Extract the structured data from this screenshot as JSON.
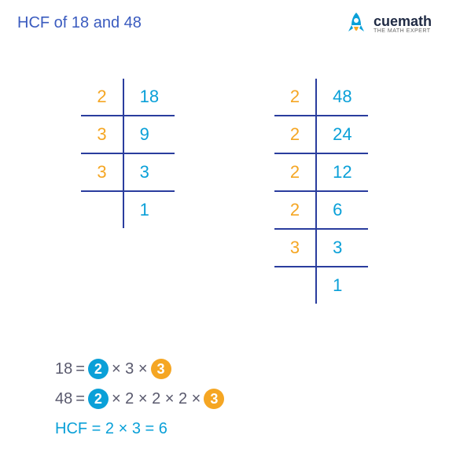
{
  "title": {
    "text": "HCF of 18 and 48",
    "color": "#3a5bbf"
  },
  "brand": {
    "name": "cuemath",
    "tagline": "THE MATH EXPERT",
    "color": "#1f2a44",
    "rocket_body": "#0aa0d8",
    "rocket_flame": "#f5a623"
  },
  "colors": {
    "factor": "#f5a623",
    "value": "#0aa0d8",
    "grid": "#2a3d9e",
    "eq_text": "#5a5a6e",
    "eq_result": "#0aa0d8",
    "chip_blue_bg": "#0aa0d8",
    "chip_orange_bg": "#f5a623"
  },
  "table_left": {
    "rows": [
      {
        "factor": "2",
        "value": "18"
      },
      {
        "factor": "3",
        "value": "9"
      },
      {
        "factor": "3",
        "value": "3"
      },
      {
        "factor": "",
        "value": "1"
      }
    ]
  },
  "table_right": {
    "rows": [
      {
        "factor": "2",
        "value": "48"
      },
      {
        "factor": "2",
        "value": "24"
      },
      {
        "factor": "2",
        "value": "12"
      },
      {
        "factor": "2",
        "value": "6"
      },
      {
        "factor": "3",
        "value": "3"
      },
      {
        "factor": "",
        "value": "1"
      }
    ]
  },
  "equations": {
    "line1": {
      "lhs": "18",
      "eq": "=",
      "t1": "2",
      "s1": "×  3  ×",
      "t2": "3"
    },
    "line2": {
      "lhs": "48",
      "eq": "=",
      "t1": "2",
      "s1": "×  2  ×  2  ×  2  ×",
      "t2": "3"
    },
    "result": "HCF  =  2 × 3  =  6"
  }
}
